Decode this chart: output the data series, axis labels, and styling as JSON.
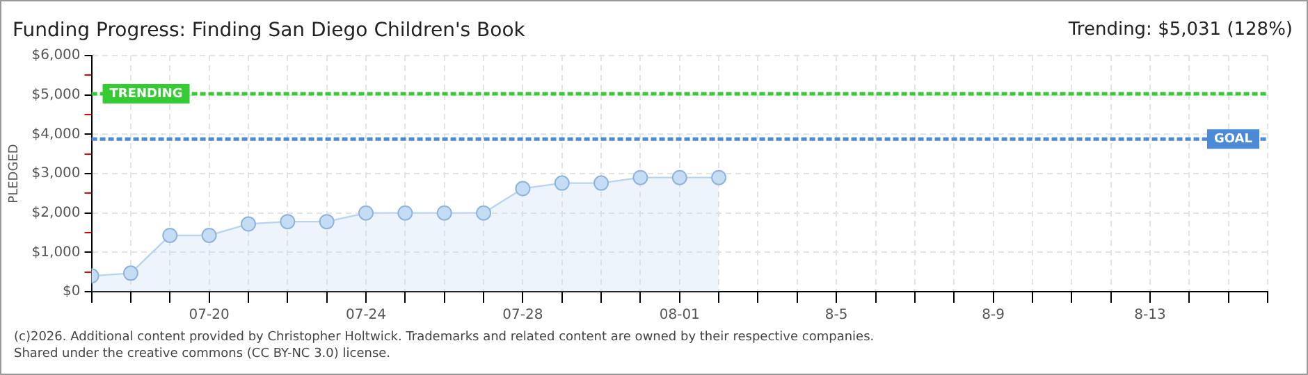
{
  "chart_data": {
    "type": "area",
    "title": "Funding Progress: Finding San Diego Children's Book",
    "ylabel": "PLEDGED",
    "annotations": [
      "Trending:  $5,031 (128%)",
      "(c)2026. Additional content provided by Christopher Holtwick. Trademarks and related content are owned by their respective companies.",
      "Shared under the creative commons (CC BY-NC 3.0) license."
    ],
    "x": [
      "--07-17",
      "--07-18",
      "--07-19",
      "--07-20",
      "--07-21",
      "--07-22",
      "--07-23",
      "--07-24",
      "--07-25",
      "--07-26",
      "--07-27",
      "--07-28",
      "--07-29",
      "--07-30",
      "--07-31",
      "--08-01",
      "--08-02"
    ],
    "series": [
      {
        "color": "#b8d4f2",
        "values": [
          400,
          470,
          1430,
          1430,
          1720,
          1780,
          1780,
          2000,
          2000,
          2000,
          2000,
          2620,
          2760,
          2760,
          2900,
          2900,
          2900
        ]
      }
    ],
    "xlim": [
      "--07-17",
      "--08-16"
    ],
    "xticks": [
      {
        "value": "--07-17",
        "label": null
      },
      {
        "value": "--07-18",
        "label": null
      },
      {
        "value": "--07-19",
        "label": null
      },
      {
        "value": "--07-20",
        "label": "07-20"
      },
      {
        "value": "--07-21",
        "label": null
      },
      {
        "value": "--07-22",
        "label": null
      },
      {
        "value": "--07-23",
        "label": null
      },
      {
        "value": "--07-24",
        "label": "07-24"
      },
      {
        "value": "--07-25",
        "label": null
      },
      {
        "value": "--07-26",
        "label": null
      },
      {
        "value": "--07-27",
        "label": null
      },
      {
        "value": "--07-28",
        "label": "07-28"
      },
      {
        "value": "--07-29",
        "label": null
      },
      {
        "value": "--07-30",
        "label": null
      },
      {
        "value": "--07-31",
        "label": null
      },
      {
        "value": "--08-01",
        "label": "08-01"
      },
      {
        "value": "--08-02",
        "label": null
      },
      {
        "value": "--08-03",
        "label": null
      },
      {
        "value": "--08-04",
        "label": null
      },
      {
        "value": "--08-05",
        "label": "8-5"
      },
      {
        "value": "--08-06",
        "label": null
      },
      {
        "value": "--08-07",
        "label": null
      },
      {
        "value": "--08-08",
        "label": null
      },
      {
        "value": "--08-09",
        "label": "8-9"
      },
      {
        "value": "--08-10",
        "label": null
      },
      {
        "value": "--08-11",
        "label": null
      },
      {
        "value": "--08-12",
        "label": null
      },
      {
        "value": "--08-13",
        "label": "8-13"
      },
      {
        "value": "--08-14",
        "label": null
      },
      {
        "value": "--08-15",
        "label": null
      },
      {
        "value": "--08-16",
        "label": null
      }
    ],
    "ylim": [
      0,
      6000
    ],
    "yticks": [
      {
        "value": 0,
        "label": "$0"
      },
      {
        "value": 500,
        "label": null
      },
      {
        "value": 1000,
        "label": "$1,000"
      },
      {
        "value": 1500,
        "label": null
      },
      {
        "value": 2000,
        "label": "$2,000"
      },
      {
        "value": 2500,
        "label": null
      },
      {
        "value": 3000,
        "label": "$3,000"
      },
      {
        "value": 3500,
        "label": null
      },
      {
        "value": 4000,
        "label": "$4,000"
      },
      {
        "value": 4500,
        "label": null
      },
      {
        "value": 5000,
        "label": "$5,000"
      },
      {
        "value": 5500,
        "label": null
      },
      {
        "value": 6000,
        "label": "$6,000"
      }
    ],
    "ref_lines": [
      {
        "axis": "y",
        "value": 5031,
        "label": "TRENDING",
        "color": "#33cc33",
        "line_style": "dashed"
      },
      {
        "axis": "y",
        "value": 3880,
        "label": "GOAL",
        "color": "#4a8ad6",
        "line_style": "dashed"
      }
    ],
    "grid": true,
    "legend": false,
    "marker": "circle",
    "line_style": "solid"
  }
}
